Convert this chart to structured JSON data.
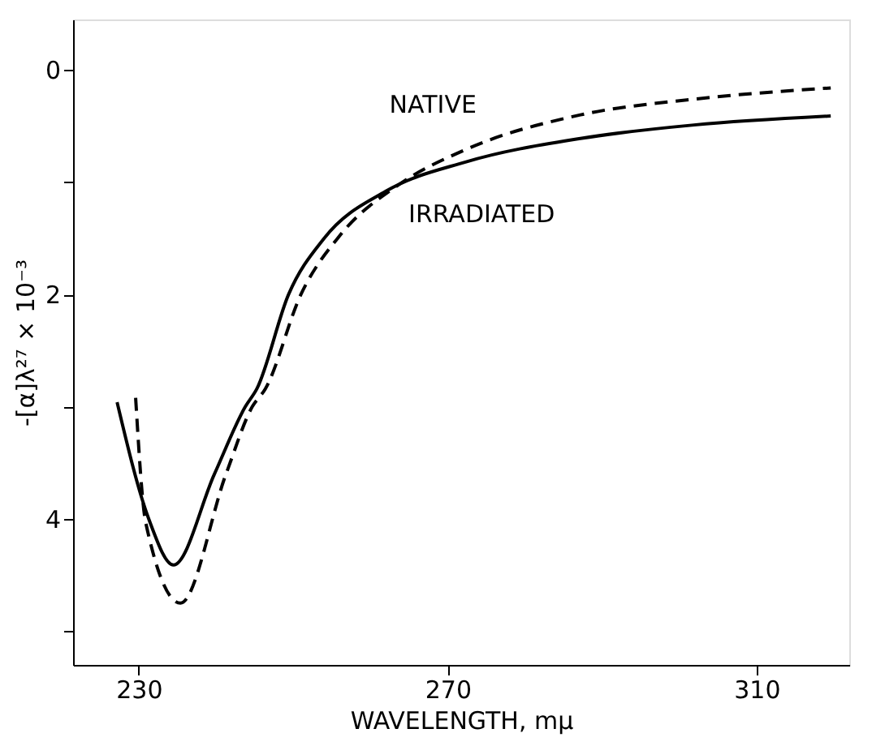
{
  "chart_data": {
    "type": "line",
    "xlabel": "WAVELENGTH, mμ",
    "ylabel": "-[α]λ²⁷ × 10⁻³",
    "xlim": [
      221.5,
      322
    ],
    "xticks": [
      230,
      270,
      310
    ],
    "ylim": [
      5.3,
      -0.45
    ],
    "yticks": [
      0,
      {
        "value": 1,
        "label": null
      },
      2,
      {
        "value": 3,
        "label": null
      },
      4,
      {
        "value": 5,
        "label": null
      }
    ],
    "grid": false,
    "legend": false,
    "marker": "none",
    "series": [
      {
        "name": "IRRADIATED",
        "color": "#000000",
        "line_style": "solid",
        "x": [
          227.2,
          231.3,
          234.5,
          239.8,
          243.8,
          245.3,
          249.4,
          254,
          262,
          272.3,
          287.2,
          301.9,
          319.6
        ],
        "values": [
          2.96,
          4.0,
          4.41,
          3.6,
          3.0,
          2.84,
          2.0,
          1.5,
          1.08,
          0.82,
          0.61,
          0.49,
          0.41
        ]
      },
      {
        "name": "NATIVE",
        "color": "#000000",
        "line_style": "dashed",
        "x": [
          229.6,
          230.9,
          235.4,
          241.3,
          244.7,
          246.4,
          251,
          256.1,
          263.5,
          272.3,
          287.2,
          301.9,
          319.6
        ],
        "values": [
          2.92,
          4.03,
          4.75,
          3.6,
          3.0,
          2.84,
          2.0,
          1.47,
          1.03,
          0.71,
          0.4,
          0.26,
          0.16
        ]
      }
    ]
  }
}
